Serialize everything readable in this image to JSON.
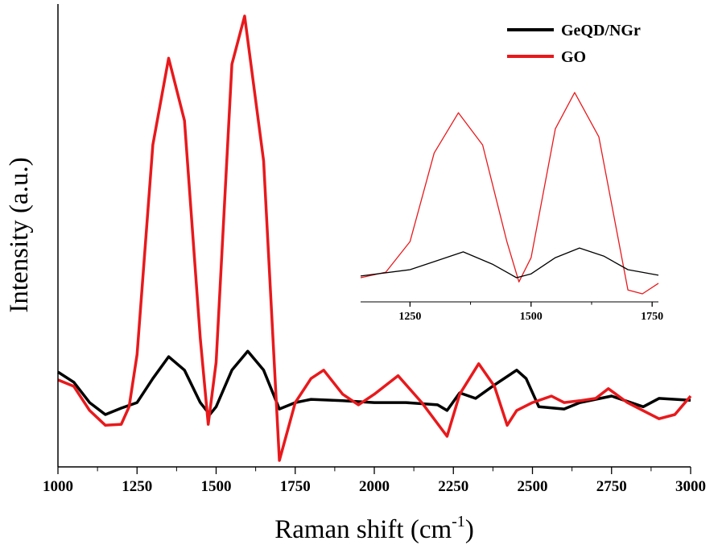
{
  "chart_data": [
    {
      "type": "line",
      "xlabel": [
        "Raman shift (cm",
        "-1",
        ")"
      ],
      "ylabel": "Intensity (a.u.)",
      "xlim": [
        1000,
        3000
      ],
      "ylim": [
        0,
        100
      ],
      "xticks": [
        1000,
        1250,
        1500,
        1750,
        2000,
        2250,
        2500,
        2750,
        3000
      ],
      "legend": "top-right",
      "series": [
        {
          "name": "GeQD/NGr",
          "color": "#000000",
          "x": [
            1000,
            1050,
            1100,
            1150,
            1200,
            1250,
            1300,
            1350,
            1400,
            1450,
            1480,
            1500,
            1550,
            1600,
            1650,
            1700,
            1750,
            1800,
            1900,
            2000,
            2100,
            2200,
            2230,
            2270,
            2320,
            2380,
            2450,
            2480,
            2520,
            2600,
            2650,
            2750,
            2850,
            2900,
            3000
          ],
          "values": [
            20.5,
            18.3,
            13.9,
            11.3,
            12.7,
            13.9,
            19.1,
            23.8,
            20.9,
            13.9,
            11.3,
            13.0,
            20.9,
            25.0,
            20.9,
            12.5,
            13.9,
            14.6,
            14.3,
            13.9,
            13.9,
            13.4,
            12.2,
            16.0,
            14.8,
            17.7,
            20.9,
            19.1,
            13.0,
            12.5,
            13.9,
            15.3,
            13.0,
            14.8,
            14.4
          ]
        },
        {
          "name": "GO",
          "color": "#e8191c",
          "x": [
            1000,
            1050,
            1100,
            1150,
            1200,
            1225,
            1250,
            1300,
            1350,
            1400,
            1450,
            1475,
            1500,
            1550,
            1590,
            1650,
            1700,
            1750,
            1800,
            1840,
            1900,
            1950,
            2000,
            2075,
            2150,
            2230,
            2270,
            2330,
            2380,
            2420,
            2450,
            2500,
            2560,
            2600,
            2650,
            2700,
            2740,
            2800,
            2900,
            2950,
            3000
          ],
          "values": [
            18.8,
            17.4,
            12.2,
            9.0,
            9.2,
            13.0,
            24.3,
            69.6,
            88.3,
            74.8,
            27.8,
            9.2,
            22.6,
            87.0,
            97.4,
            66.1,
            1.4,
            13.9,
            19.1,
            20.9,
            15.7,
            13.4,
            15.7,
            19.7,
            13.9,
            6.6,
            15.7,
            22.3,
            17.4,
            9.0,
            12.2,
            13.9,
            15.3,
            13.9,
            14.3,
            14.8,
            16.9,
            13.9,
            10.4,
            11.3,
            15.3
          ]
        }
      ]
    },
    {
      "type": "line",
      "xlim": [
        1148,
        1763
      ],
      "ylim": [
        0,
        100
      ],
      "xticks": [
        1250,
        1500,
        1750
      ],
      "series": [
        {
          "color": "#e8191c",
          "x": [
            1148,
            1200,
            1250,
            1300,
            1350,
            1400,
            1450,
            1475,
            1500,
            1550,
            1590,
            1640,
            1700,
            1730,
            1763
          ],
          "values": [
            8.7,
            10.7,
            21.7,
            53.6,
            68.1,
            56.5,
            21.7,
            7.2,
            15.9,
            62.3,
            75.4,
            59.4,
            4.3,
            2.9,
            6.7
          ]
        },
        {
          "color": "#000000",
          "x": [
            1148,
            1250,
            1300,
            1360,
            1420,
            1470,
            1500,
            1550,
            1600,
            1650,
            1700,
            1763
          ],
          "values": [
            9.3,
            11.6,
            14.5,
            18.0,
            13.6,
            8.7,
            10.1,
            15.9,
            19.4,
            16.5,
            11.6,
            9.6
          ]
        }
      ]
    }
  ]
}
